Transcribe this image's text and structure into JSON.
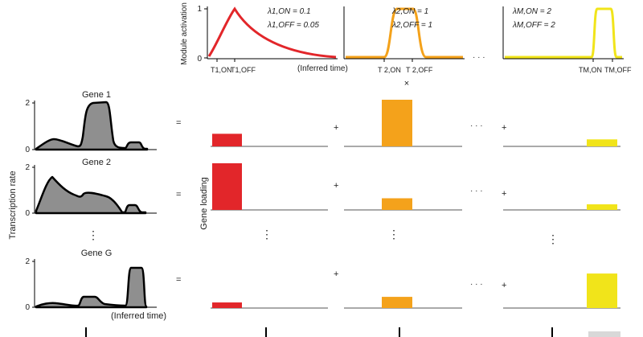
{
  "colors": {
    "module1": "#e2262a",
    "module2": "#f4a21b",
    "moduleM": "#f1e41a",
    "rate_fill": "#8f8f8f",
    "rate_stroke": "#000000"
  },
  "modules": {
    "ylabel": "Module activation",
    "ytick_top": "1",
    "ytick_bottom": "0",
    "m1": {
      "lambda_on": "λ1,ON = 0.1",
      "lambda_off": "λ1,OFF = 0.05",
      "t_on": "T1,ON",
      "t_off": "T1,OFF",
      "xlabel": "(Inferred time)"
    },
    "m2": {
      "lambda_on": "λ2,ON = 1",
      "lambda_off": "λ2,OFF = 1",
      "t_on": "T 2,ON",
      "t_off": "T 2,OFF"
    },
    "mM": {
      "lambda_on": "λM,ON = 2",
      "lambda_off": "λM,OFF = 2",
      "t_on": "TM,ON",
      "t_off": "TM,OFF"
    },
    "ellipsis": "· · ·",
    "times": "×"
  },
  "genes": {
    "ylabel": "Transcription rate",
    "xlabel": "(Inferred time)",
    "loading_label": "Gene loading",
    "equals": "=",
    "plus": "+",
    "ellipsis_h": "· · ·",
    "vdots": "⋮",
    "rows": [
      {
        "name": "Gene 1",
        "tick_top": "2",
        "tick_bottom": "0"
      },
      {
        "name": "Gene 2",
        "tick_top": "2",
        "tick_bottom": "0"
      },
      {
        "name": "Gene G",
        "tick_top": "2",
        "tick_bottom": "0"
      }
    ],
    "loadings": [
      {
        "module1": 0.27,
        "module2": 1.0,
        "moduleM": 0.15
      },
      {
        "module1": 1.0,
        "module2": 0.25,
        "moduleM": 0.12
      },
      {
        "module1": 0.12,
        "module2": 0.24,
        "moduleM": 0.74
      }
    ]
  }
}
